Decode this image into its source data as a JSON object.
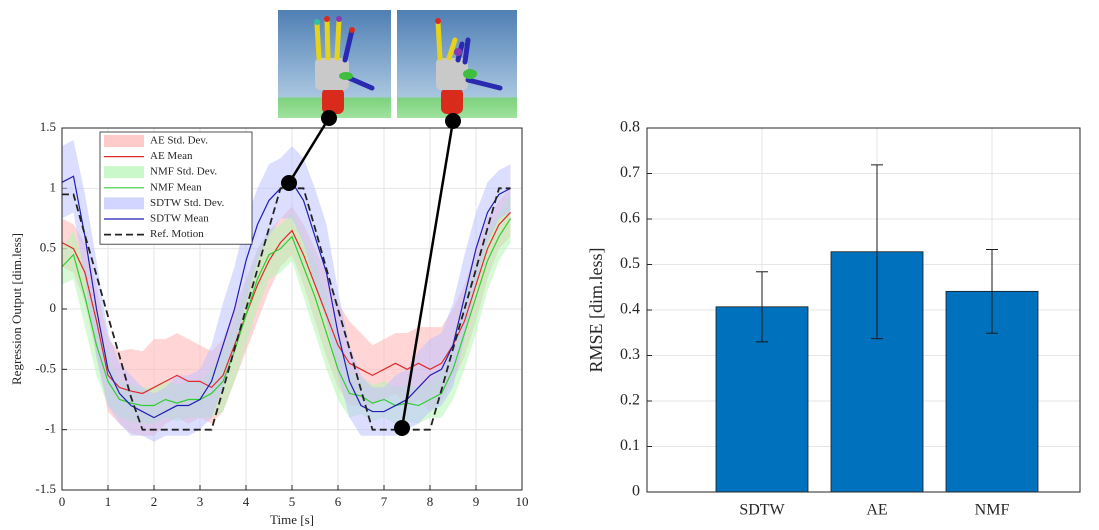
{
  "chart_data": [
    {
      "type": "line",
      "xlabel": "Time [s]",
      "ylabel": "Regression Output [dim.less]",
      "x": [
        0,
        0.25,
        0.5,
        0.75,
        1,
        1.25,
        1.5,
        1.75,
        2,
        2.25,
        2.5,
        2.75,
        3,
        3.25,
        3.5,
        3.75,
        4,
        4.25,
        4.5,
        4.75,
        5,
        5.25,
        5.5,
        5.75,
        6,
        6.25,
        6.5,
        6.75,
        7,
        7.25,
        7.5,
        7.75,
        8,
        8.25,
        8.5,
        8.75,
        9,
        9.25,
        9.5,
        9.75
      ],
      "xlim": [
        0,
        10
      ],
      "xticks": [
        0,
        1,
        2,
        3,
        4,
        5,
        6,
        7,
        8,
        9,
        10
      ],
      "ylim": [
        -1.5,
        1.5
      ],
      "yticks": [
        -1.5,
        -1,
        -0.5,
        0,
        0.5,
        1,
        1.5
      ],
      "grid": true,
      "legend": "upper left",
      "series": [
        {
          "name": "AE Std. Dev.",
          "style": "band",
          "color": "#ffb3b3",
          "values": [
            0.2,
            0.2,
            0.25,
            0.3,
            0.3,
            0.3,
            0.35,
            0.35,
            0.4,
            0.35,
            0.35,
            0.35,
            0.3,
            0.3,
            0.3,
            0.3,
            0.3,
            0.3,
            0.25,
            0.2,
            0.2,
            0.25,
            0.3,
            0.35,
            0.35,
            0.35,
            0.3,
            0.25,
            0.25,
            0.25,
            0.3,
            0.3,
            0.35,
            0.3,
            0.3,
            0.3,
            0.3,
            0.25,
            0.2,
            0.2
          ]
        },
        {
          "name": "AE Mean",
          "style": "line",
          "color": "#e02a2a",
          "values": [
            0.55,
            0.5,
            0.3,
            -0.1,
            -0.55,
            -0.65,
            -0.68,
            -0.7,
            -0.65,
            -0.6,
            -0.55,
            -0.6,
            -0.6,
            -0.65,
            -0.55,
            -0.3,
            -0.05,
            0.2,
            0.4,
            0.55,
            0.65,
            0.45,
            0.2,
            -0.05,
            -0.3,
            -0.45,
            -0.5,
            -0.55,
            -0.5,
            -0.45,
            -0.5,
            -0.45,
            -0.5,
            -0.45,
            -0.3,
            -0.1,
            0.2,
            0.5,
            0.7,
            0.8
          ]
        },
        {
          "name": "NMF Std. Dev.",
          "style": "band",
          "color": "#b3f5b3",
          "values": [
            0.15,
            0.2,
            0.25,
            0.25,
            0.2,
            0.15,
            0.15,
            0.15,
            0.15,
            0.15,
            0.15,
            0.15,
            0.15,
            0.2,
            0.25,
            0.25,
            0.25,
            0.25,
            0.2,
            0.2,
            0.2,
            0.25,
            0.3,
            0.3,
            0.25,
            0.2,
            0.15,
            0.15,
            0.15,
            0.15,
            0.15,
            0.15,
            0.15,
            0.2,
            0.25,
            0.3,
            0.3,
            0.25,
            0.2,
            0.2
          ]
        },
        {
          "name": "NMF Mean",
          "style": "line",
          "color": "#33cc33",
          "values": [
            0.35,
            0.45,
            0.1,
            -0.3,
            -0.6,
            -0.75,
            -0.78,
            -0.8,
            -0.8,
            -0.75,
            -0.78,
            -0.75,
            -0.75,
            -0.7,
            -0.6,
            -0.35,
            -0.05,
            0.25,
            0.45,
            0.5,
            0.6,
            0.35,
            0.1,
            -0.2,
            -0.5,
            -0.7,
            -0.72,
            -0.78,
            -0.75,
            -0.8,
            -0.78,
            -0.8,
            -0.75,
            -0.7,
            -0.5,
            -0.2,
            0.1,
            0.4,
            0.6,
            0.75
          ]
        },
        {
          "name": "SDTW Std. Dev.",
          "style": "band",
          "color": "#bfc3ff",
          "values": [
            0.3,
            0.3,
            0.35,
            0.4,
            0.3,
            0.25,
            0.25,
            0.2,
            0.2,
            0.2,
            0.25,
            0.25,
            0.25,
            0.3,
            0.35,
            0.35,
            0.35,
            0.3,
            0.3,
            0.25,
            0.3,
            0.35,
            0.4,
            0.4,
            0.35,
            0.3,
            0.25,
            0.2,
            0.2,
            0.25,
            0.25,
            0.3,
            0.3,
            0.3,
            0.35,
            0.35,
            0.3,
            0.25,
            0.2,
            0.2
          ]
        },
        {
          "name": "SDTW Mean",
          "style": "line",
          "color": "#1f1fb0",
          "values": [
            1.05,
            1.1,
            0.6,
            0.0,
            -0.5,
            -0.7,
            -0.8,
            -0.85,
            -0.9,
            -0.85,
            -0.8,
            -0.8,
            -0.75,
            -0.6,
            -0.3,
            0.0,
            0.4,
            0.7,
            0.9,
            1.0,
            1.05,
            0.9,
            0.6,
            0.3,
            -0.2,
            -0.6,
            -0.8,
            -0.85,
            -0.85,
            -0.8,
            -0.75,
            -0.65,
            -0.55,
            -0.5,
            -0.3,
            0.1,
            0.5,
            0.8,
            0.95,
            1.0
          ]
        },
        {
          "name": "Ref. Motion",
          "style": "dashed",
          "color": "#222222",
          "values": [
            0.95,
            0.95,
            0.61,
            0.28,
            -0.06,
            -0.39,
            -0.73,
            -1,
            -1,
            -1,
            -1,
            -1,
            -1,
            -1,
            -0.67,
            -0.33,
            0,
            0.33,
            0.67,
            1,
            1,
            1,
            0.67,
            0.33,
            0,
            -0.33,
            -0.67,
            -1,
            -1,
            -1,
            -1,
            -1,
            -1,
            -0.67,
            -0.33,
            0,
            0.33,
            0.67,
            1,
            1
          ]
        }
      ]
    },
    {
      "type": "bar",
      "ylabel": "RMSE [dim.less]",
      "categories": [
        "SDTW",
        "AE",
        "NMF"
      ],
      "values": [
        0.407,
        0.528,
        0.441
      ],
      "errors": [
        0.077,
        0.191,
        0.092
      ],
      "color": "#0072bd",
      "ylim": [
        0,
        0.8
      ],
      "yticks": [
        0,
        0.1,
        0.2,
        0.3,
        0.4,
        0.5,
        0.6,
        0.7,
        0.8
      ],
      "grid": true
    }
  ]
}
